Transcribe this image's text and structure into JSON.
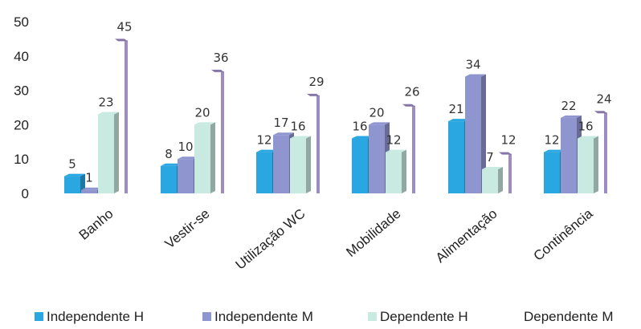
{
  "chart_data": {
    "type": "bar",
    "categories": [
      "Banho",
      "Vestir-se",
      "Utilização WC",
      "Mobilidade",
      "Alimentação",
      "Continência"
    ],
    "series": [
      {
        "name": "Independente H",
        "values": [
          5,
          8,
          12,
          16,
          21,
          12
        ],
        "color": "#2aa7e0"
      },
      {
        "name": "Independente M",
        "values": [
          1,
          10,
          17,
          20,
          34,
          22
        ],
        "color": "#8f95cf"
      },
      {
        "name": "Dependente H",
        "values": [
          23,
          20,
          16,
          12,
          7,
          16
        ],
        "color": "#c8eae0"
      },
      {
        "name": "Dependente M",
        "values": [
          45,
          36,
          29,
          26,
          12,
          24
        ],
        "color": "#9d8bc4"
      }
    ],
    "data_labels": [
      [
        "5",
        "1",
        "23",
        "45"
      ],
      [
        "8",
        "10",
        "20",
        "36"
      ],
      [
        "12",
        "17",
        "16",
        "29"
      ],
      [
        "16",
        "20",
        "12",
        "26"
      ],
      [
        "21",
        "34",
        "7",
        "12"
      ],
      [
        "12",
        "22",
        "16",
        "24"
      ]
    ],
    "y_ticks": [
      "0",
      "10",
      "20",
      "30",
      "40",
      "50"
    ],
    "ylim": [
      0,
      50
    ],
    "legend_position": "bottom",
    "grid": false
  }
}
